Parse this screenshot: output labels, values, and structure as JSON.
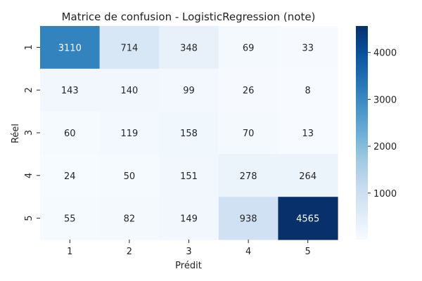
{
  "chart_data": {
    "type": "heatmap",
    "title": "Matrice de confusion - LogisticRegression (note)",
    "xlabel": "Prédit",
    "ylabel": "Réel",
    "x_categories": [
      "1",
      "2",
      "3",
      "4",
      "5"
    ],
    "y_categories": [
      "1",
      "2",
      "3",
      "4",
      "5"
    ],
    "values": [
      [
        3110,
        714,
        348,
        69,
        33
      ],
      [
        143,
        140,
        99,
        26,
        8
      ],
      [
        60,
        119,
        158,
        70,
        13
      ],
      [
        24,
        50,
        151,
        278,
        264
      ],
      [
        55,
        82,
        149,
        938,
        4565
      ]
    ],
    "colormap": "Blues",
    "colorbar": {
      "min": 8,
      "max": 4565,
      "ticks": [
        1000,
        2000,
        3000,
        4000
      ]
    },
    "colors": {
      "low": "#f7fbff",
      "high": "#08306b"
    }
  }
}
